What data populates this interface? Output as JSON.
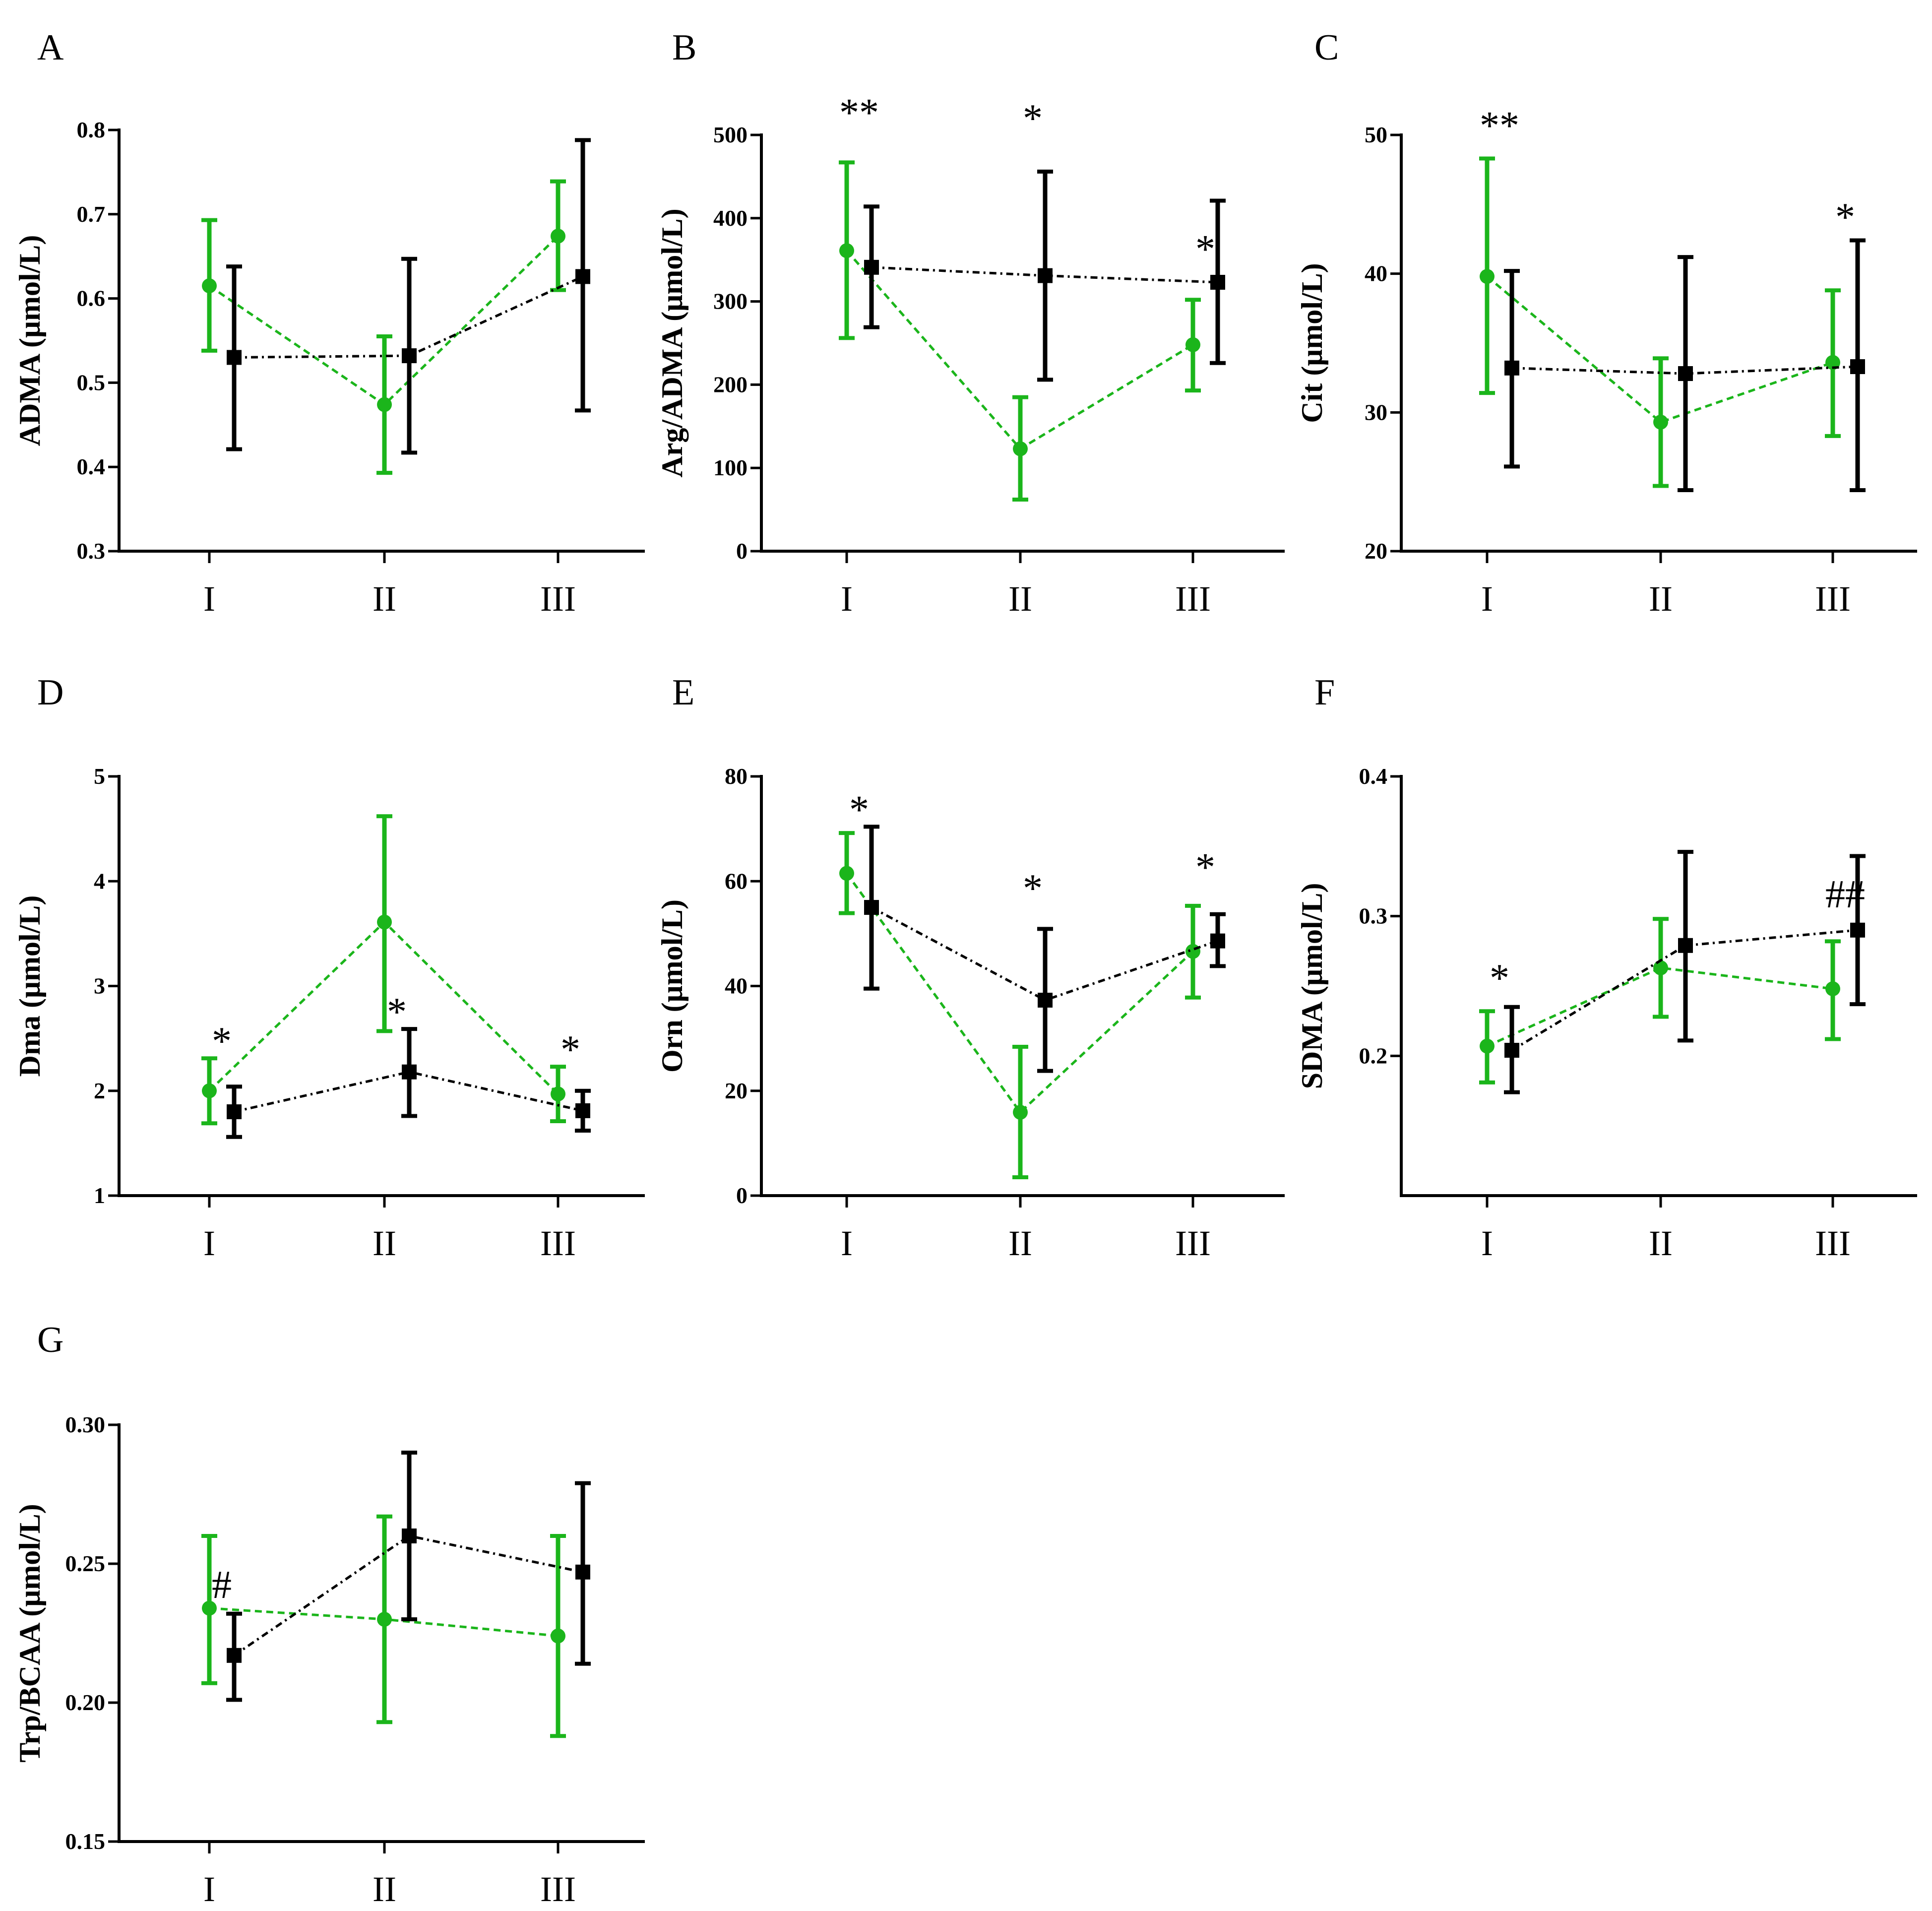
{
  "figure": {
    "colors": {
      "green": "#1bb51b",
      "black": "#000000",
      "axis": "#000000"
    }
  },
  "chart_data": [
    {
      "panel": "A",
      "type": "line",
      "ylabel": "ADMA (μmol/L)",
      "ylim": [
        0.3,
        0.8
      ],
      "yticks": [
        0.3,
        0.4,
        0.5,
        0.6,
        0.7,
        0.8
      ],
      "ytick_labels": [
        "0.3",
        "0.4",
        "0.5",
        "0.6",
        "0.7",
        "0.8"
      ],
      "categories": [
        "I",
        "II",
        "III"
      ],
      "series": [
        {
          "name": "green",
          "marker": "circle",
          "values": [
            0.615,
            0.474,
            0.674
          ],
          "lower": [
            0.538,
            0.393,
            0.61
          ],
          "upper": [
            0.693,
            0.555,
            0.739
          ]
        },
        {
          "name": "black",
          "marker": "square",
          "values": [
            0.53,
            0.532,
            0.626
          ],
          "lower": [
            0.421,
            0.417,
            0.467
          ],
          "upper": [
            0.638,
            0.647,
            0.788
          ]
        }
      ],
      "annotations": []
    },
    {
      "panel": "B",
      "type": "line",
      "ylabel": "Arg/ADMA (μmol/L)",
      "ylim": [
        0,
        500
      ],
      "yticks": [
        0,
        100,
        200,
        300,
        400,
        500
      ],
      "ytick_labels": [
        "0",
        "100",
        "200",
        "300",
        "400",
        "500"
      ],
      "categories": [
        "I",
        "II",
        "III"
      ],
      "series": [
        {
          "name": "green",
          "marker": "circle",
          "values": [
            361,
            123,
            248
          ],
          "lower": [
            256,
            62,
            193
          ],
          "upper": [
            467,
            185,
            302
          ]
        },
        {
          "name": "black",
          "marker": "square",
          "values": [
            341,
            331,
            323
          ],
          "lower": [
            269,
            206,
            226
          ],
          "upper": [
            414,
            456,
            421
          ]
        }
      ],
      "annotations": [
        {
          "text": "**",
          "category": 0,
          "y": 529
        },
        {
          "text": "*",
          "category": 1,
          "y": 522
        },
        {
          "text": "*",
          "category": 2,
          "y": 365
        }
      ]
    },
    {
      "panel": "C",
      "type": "line",
      "ylabel": "Cit (μmol/L)",
      "ylim": [
        20,
        50
      ],
      "yticks": [
        20,
        30,
        40,
        50
      ],
      "ytick_labels": [
        "20",
        "30",
        "40",
        "50"
      ],
      "categories": [
        "I",
        "II",
        "III"
      ],
      "series": [
        {
          "name": "green",
          "marker": "circle",
          "values": [
            39.8,
            29.3,
            33.6
          ],
          "lower": [
            31.4,
            24.7,
            28.3
          ],
          "upper": [
            48.3,
            33.9,
            38.8
          ]
        },
        {
          "name": "black",
          "marker": "square",
          "values": [
            33.2,
            32.8,
            33.3
          ],
          "lower": [
            26.1,
            24.4,
            24.4
          ],
          "upper": [
            40.2,
            41.2,
            42.4
          ]
        }
      ],
      "annotations": [
        {
          "text": "**",
          "category": 0,
          "y": 50.8
        },
        {
          "text": "*",
          "category": 2,
          "y": 44.2
        }
      ]
    },
    {
      "panel": "D",
      "type": "line",
      "ylabel": "Dma (μmol/L)",
      "ylim": [
        1,
        5
      ],
      "yticks": [
        1,
        2,
        3,
        4,
        5
      ],
      "ytick_labels": [
        "1",
        "2",
        "3",
        "4",
        "5"
      ],
      "categories": [
        "I",
        "II",
        "III"
      ],
      "series": [
        {
          "name": "green",
          "marker": "circle",
          "values": [
            2.0,
            3.61,
            1.97
          ],
          "lower": [
            1.69,
            2.57,
            1.71
          ],
          "upper": [
            2.31,
            4.62,
            2.23
          ]
        },
        {
          "name": "black",
          "marker": "square",
          "values": [
            1.8,
            2.18,
            1.81
          ],
          "lower": [
            1.56,
            1.76,
            1.62
          ],
          "upper": [
            2.04,
            2.59,
            2.0
          ]
        }
      ],
      "annotations": [
        {
          "text": "*",
          "category": 0,
          "y": 2.49
        },
        {
          "text": "*",
          "category": 1,
          "y": 2.77
        },
        {
          "text": "*",
          "category": 2,
          "y": 2.41
        }
      ]
    },
    {
      "panel": "E",
      "type": "line",
      "ylabel": "Orn (μmol/L)",
      "ylim": [
        0,
        80
      ],
      "yticks": [
        0,
        20,
        40,
        60,
        80
      ],
      "ytick_labels": [
        "0",
        "20",
        "40",
        "60",
        "80"
      ],
      "categories": [
        "I",
        "II",
        "III"
      ],
      "series": [
        {
          "name": "green",
          "marker": "circle",
          "values": [
            61.5,
            15.9,
            46.6
          ],
          "lower": [
            53.9,
            3.5,
            37.8
          ],
          "upper": [
            69.2,
            28.4,
            55.3
          ]
        },
        {
          "name": "black",
          "marker": "square",
          "values": [
            55.0,
            37.3,
            48.6
          ],
          "lower": [
            39.5,
            23.8,
            43.8
          ],
          "upper": [
            70.4,
            50.9,
            53.7
          ]
        }
      ],
      "annotations": [
        {
          "text": "*",
          "category": 0,
          "y": 74
        },
        {
          "text": "*",
          "category": 1,
          "y": 59
        },
        {
          "text": "*",
          "category": 2,
          "y": 63
        }
      ]
    },
    {
      "panel": "F",
      "type": "line",
      "ylabel": "SDMA (μmol/L)",
      "ylim": [
        0.1,
        0.4
      ],
      "yticks": [
        0.2,
        0.3,
        0.4
      ],
      "ytick_labels": [
        "0.2",
        "0.3",
        "0.4"
      ],
      "categories": [
        "I",
        "II",
        "III"
      ],
      "series": [
        {
          "name": "green",
          "marker": "circle",
          "values": [
            0.207,
            0.263,
            0.248
          ],
          "lower": [
            0.181,
            0.228,
            0.212
          ],
          "upper": [
            0.232,
            0.298,
            0.282
          ]
        },
        {
          "name": "black",
          "marker": "square",
          "values": [
            0.204,
            0.279,
            0.29
          ],
          "lower": [
            0.174,
            0.211,
            0.237
          ],
          "upper": [
            0.235,
            0.346,
            0.343
          ]
        }
      ],
      "annotations": [
        {
          "text": "*",
          "category": 0,
          "y": 0.257
        },
        {
          "text": "##",
          "category": 2,
          "y": 0.317
        }
      ]
    },
    {
      "panel": "G",
      "type": "line",
      "ylabel": "Trp/BCAA (μmol/L)",
      "ylim": [
        0.15,
        0.3
      ],
      "yticks": [
        0.15,
        0.2,
        0.25,
        0.3
      ],
      "ytick_labels": [
        "0.15",
        "0.20",
        "0.25",
        "0.30"
      ],
      "categories": [
        "I",
        "II",
        "III"
      ],
      "series": [
        {
          "name": "green",
          "marker": "circle",
          "values": [
            0.234,
            0.23,
            0.224
          ],
          "lower": [
            0.207,
            0.193,
            0.188
          ],
          "upper": [
            0.26,
            0.267,
            0.26
          ]
        },
        {
          "name": "black",
          "marker": "square",
          "values": [
            0.217,
            0.26,
            0.247
          ],
          "lower": [
            0.201,
            0.23,
            0.214
          ],
          "upper": [
            0.232,
            0.29,
            0.279
          ]
        }
      ],
      "annotations": [
        {
          "text": "#",
          "category": 0,
          "y": 0.243
        }
      ]
    }
  ]
}
